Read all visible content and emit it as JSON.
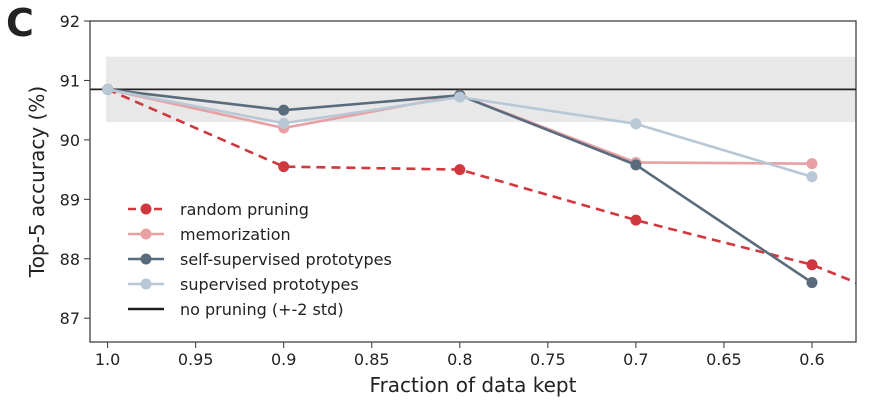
{
  "panel_label": "C",
  "chart_data": {
    "type": "line",
    "xlabel": "Fraction of data kept",
    "ylabel": "Top-5 accuracy (%)",
    "xlim": [
      1.01,
      0.575
    ],
    "ylim": [
      86.6,
      92.0
    ],
    "x_axis_reversed": true,
    "x_ticks": [
      1.0,
      0.95,
      0.9,
      0.85,
      0.8,
      0.75,
      0.7,
      0.65,
      0.6
    ],
    "x_tick_labels": [
      "1.0",
      "0.95",
      "0.9",
      "0.85",
      "0.8",
      "0.75",
      "0.7",
      "0.65",
      "0.6"
    ],
    "y_ticks": [
      87,
      88,
      89,
      90,
      91,
      92
    ],
    "y_tick_labels": [
      "87",
      "88",
      "89",
      "90",
      "91",
      "92"
    ],
    "grid": false,
    "legend_position": "lower-left",
    "band": {
      "y_low": 90.3,
      "y_high": 91.4,
      "color": "#e8e8e8"
    },
    "series": [
      {
        "name": "random pruning",
        "x": [
          1.0,
          0.9,
          0.8,
          0.7,
          0.6
        ],
        "values": [
          90.85,
          89.55,
          89.5,
          88.65,
          87.9
        ],
        "color": "#d0383f",
        "dashed": true,
        "extend_to_x": 0.575,
        "extend_to_y": 87.6
      },
      {
        "name": "memorization",
        "x": [
          1.0,
          0.9,
          0.8,
          0.7,
          0.6
        ],
        "values": [
          90.85,
          90.2,
          90.75,
          89.62,
          89.6
        ],
        "color": "#e8a0a4",
        "dashed": false
      },
      {
        "name": "self-supervised prototypes",
        "x": [
          1.0,
          0.9,
          0.8,
          0.7,
          0.6
        ],
        "values": [
          90.85,
          90.5,
          90.75,
          89.58,
          87.6
        ],
        "color": "#5a6b7d",
        "dashed": false
      },
      {
        "name": "supervised prototypes",
        "x": [
          1.0,
          0.9,
          0.8,
          0.7,
          0.6
        ],
        "values": [
          90.85,
          90.28,
          90.72,
          90.27,
          89.38
        ],
        "color": "#b8c8d6",
        "dashed": false
      }
    ],
    "reference_line": {
      "name": "no pruning (+-2 std)",
      "y": 90.85,
      "color": "#222222"
    }
  }
}
